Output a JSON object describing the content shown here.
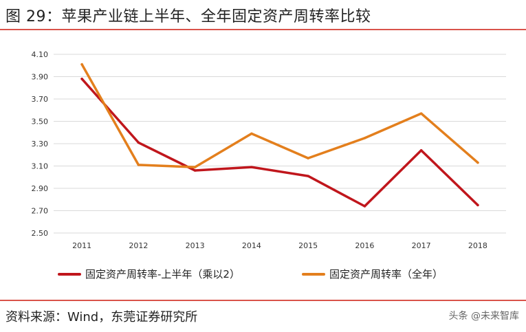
{
  "header": {
    "title": "图 29：苹果产业链上半年、全年固定资产周转率比较"
  },
  "footer": {
    "source": "资料来源：Wind，东莞证券研究所",
    "watermark": "头条 @未来智库"
  },
  "chart_data": {
    "type": "line",
    "categories": [
      "2011",
      "2012",
      "2013",
      "2014",
      "2015",
      "2016",
      "2017",
      "2018"
    ],
    "ylim": [
      2.5,
      4.1
    ],
    "yticks": [
      "2.50",
      "2.70",
      "2.90",
      "3.10",
      "3.30",
      "3.50",
      "3.70",
      "3.90",
      "4.10"
    ],
    "grid": true,
    "legend": "bottom",
    "series": [
      {
        "name": "固定资产周转率-上半年（乘以2）",
        "color": "#c0161c",
        "values": [
          3.88,
          3.31,
          3.06,
          3.09,
          3.01,
          2.74,
          3.24,
          2.75
        ]
      },
      {
        "name": "固定资产周转率（全年）",
        "color": "#e37f1d",
        "values": [
          4.01,
          3.11,
          3.09,
          3.39,
          3.17,
          3.35,
          3.57,
          3.13
        ]
      }
    ]
  }
}
